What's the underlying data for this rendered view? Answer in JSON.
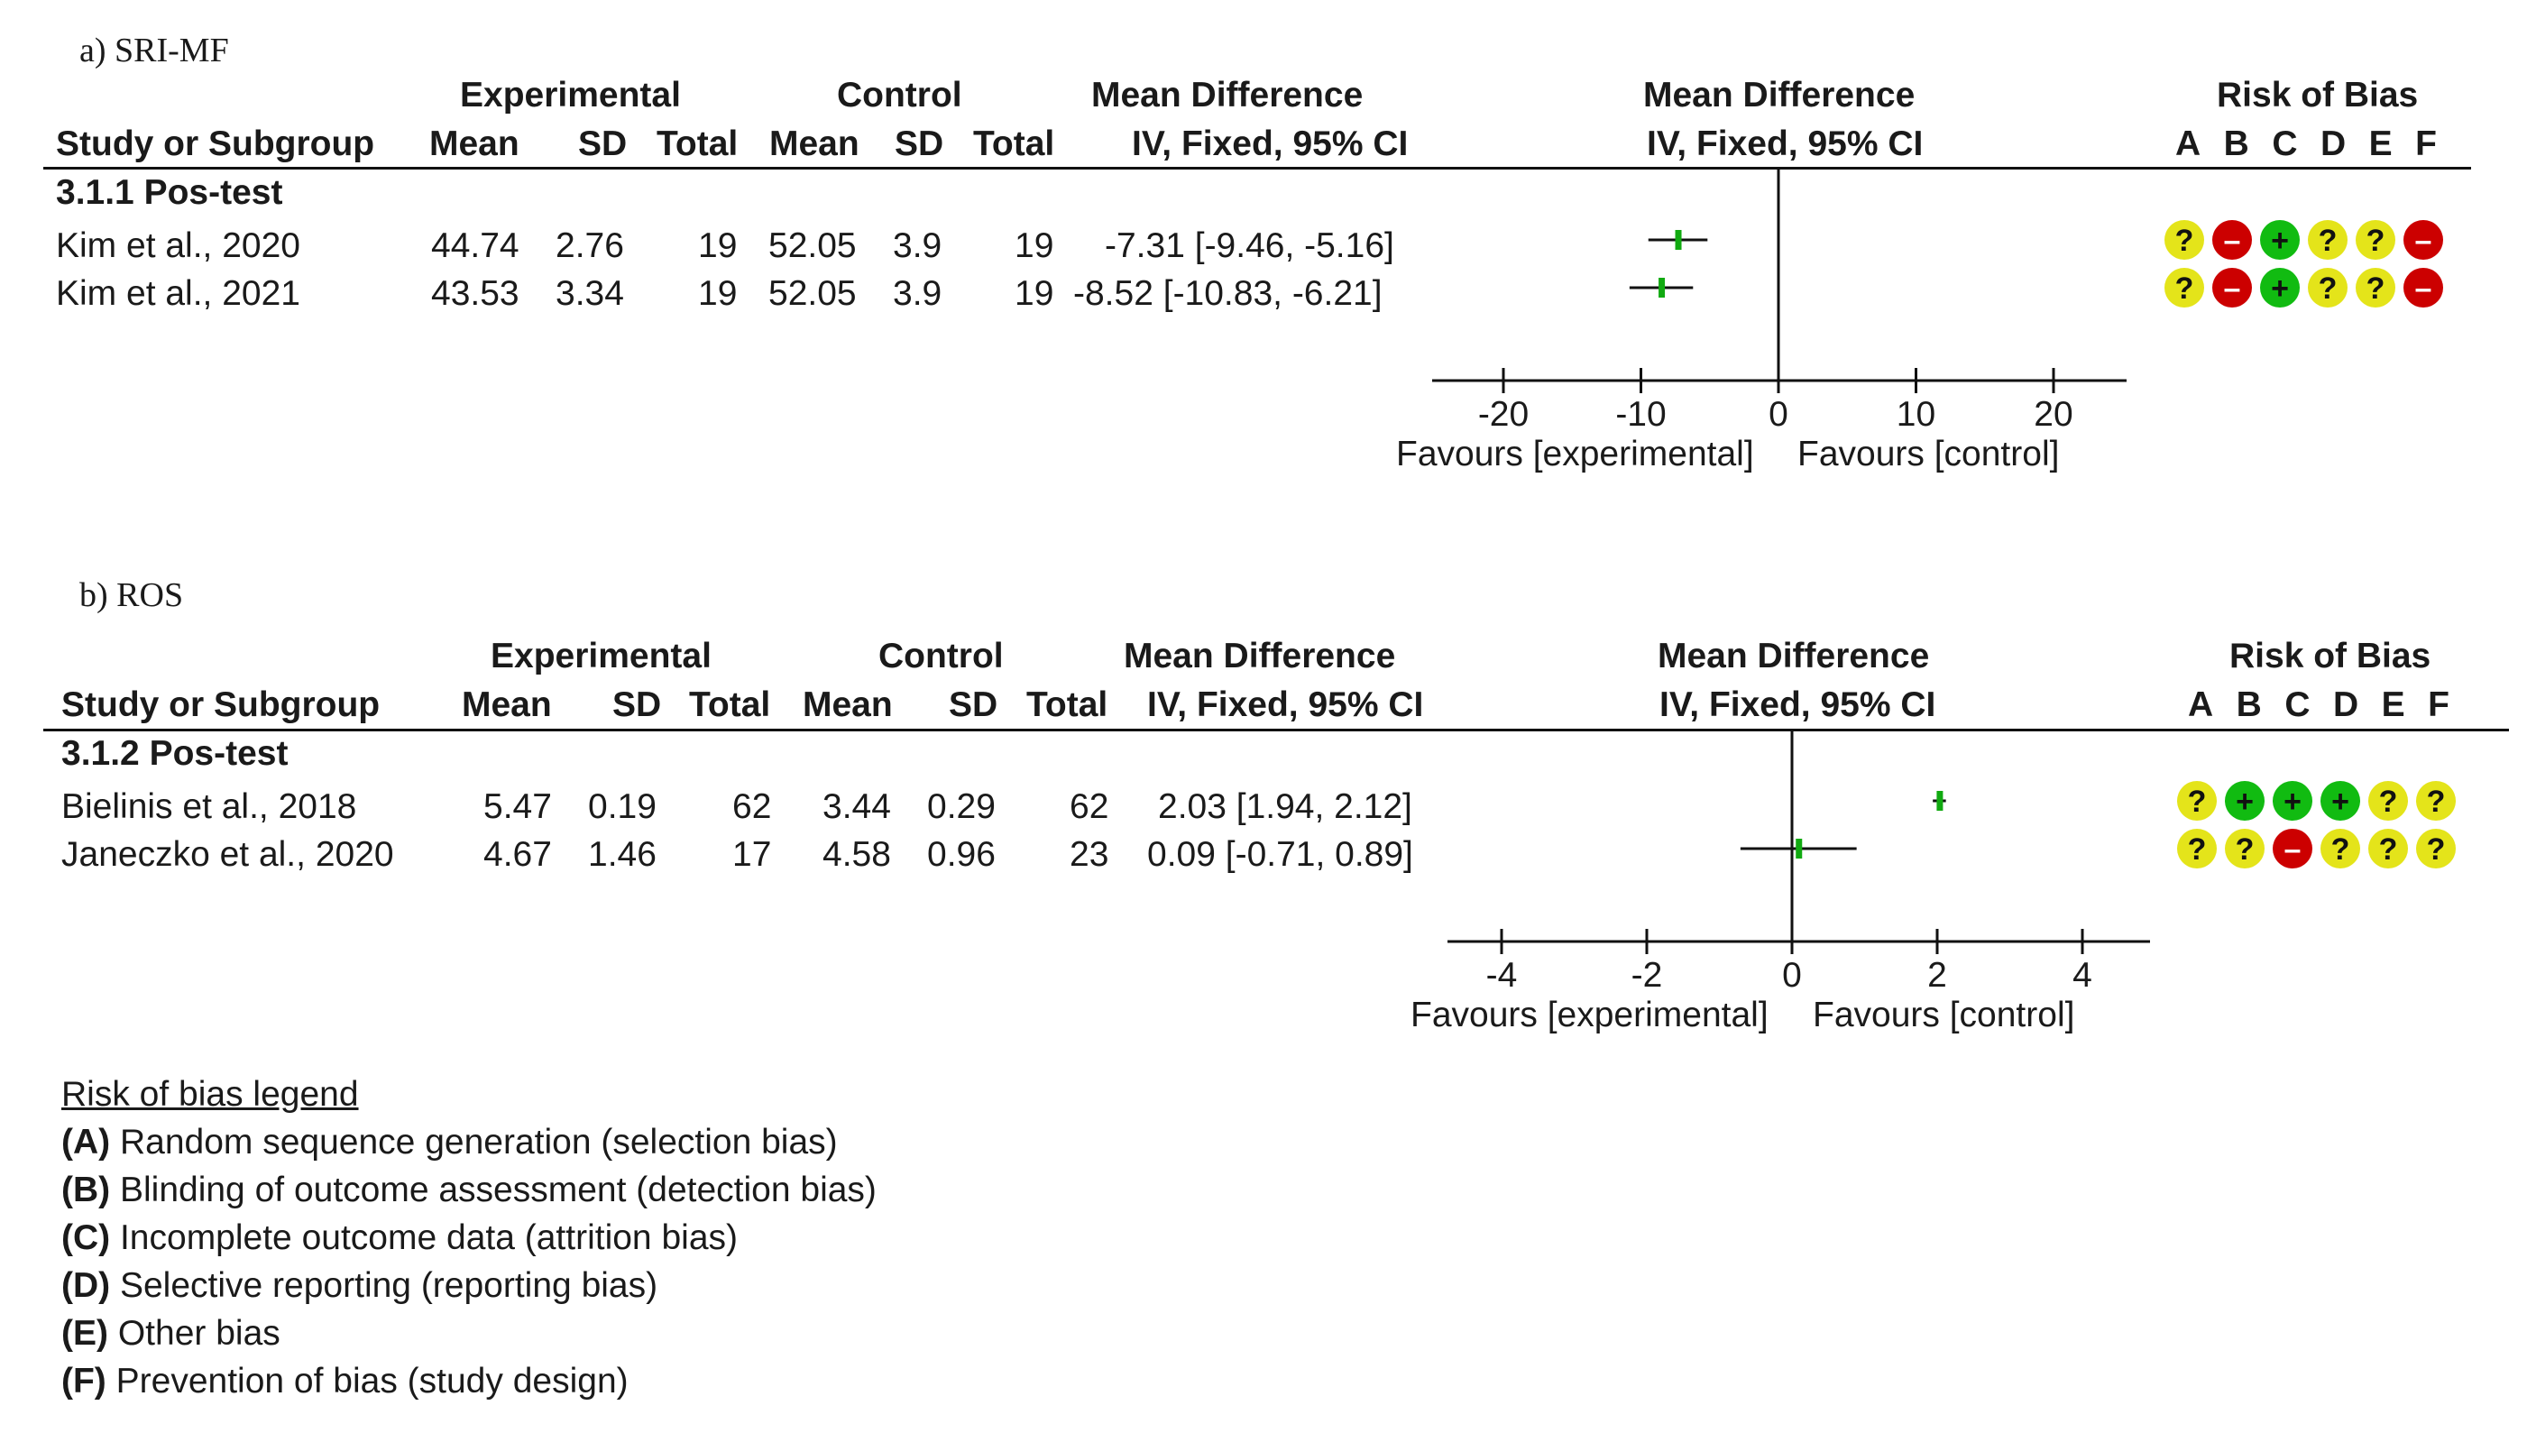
{
  "panels": [
    {
      "label": "a) SRI-MF",
      "headers": {
        "experimental": "Experimental",
        "control": "Control",
        "mean_difference": "Mean Difference",
        "iv_fixed": "IV, Fixed, 95% CI",
        "study_or_subgroup": "Study or Subgroup",
        "mean": "Mean",
        "sd": "SD",
        "total": "Total",
        "risk_of_bias": "Risk of Bias",
        "bias_letters": [
          "A",
          "B",
          "C",
          "D",
          "E",
          "F"
        ]
      },
      "subgroup": "3.1.1 Pos-test",
      "rows": [
        {
          "study": "Kim et al., 2020",
          "exp_mean": "44.74",
          "exp_sd": "2.76",
          "exp_total": "19",
          "ctl_mean": "52.05",
          "ctl_sd": "3.9",
          "ctl_total": "19",
          "ci_text": "-7.31 [-9.46, -5.16]",
          "bias": [
            "?",
            "-",
            "+",
            "?",
            "?",
            "-"
          ]
        },
        {
          "study": "Kim et al., 2021",
          "exp_mean": "43.53",
          "exp_sd": "3.34",
          "exp_total": "19",
          "ctl_mean": "52.05",
          "ctl_sd": "3.9",
          "ctl_total": "19",
          "ci_text": "-8.52 [-10.83, -6.21]",
          "bias": [
            "?",
            "-",
            "+",
            "?",
            "?",
            "-"
          ]
        }
      ],
      "axis_ticks": [
        "-20",
        "-10",
        "0",
        "10",
        "20"
      ],
      "favours_left": "Favours [experimental]",
      "favours_right": "Favours [control]"
    },
    {
      "label": "b) ROS",
      "headers": {
        "experimental": "Experimental",
        "control": "Control",
        "mean_difference": "Mean Difference",
        "iv_fixed": "IV, Fixed, 95% CI",
        "study_or_subgroup": "Study or Subgroup",
        "mean": "Mean",
        "sd": "SD",
        "total": "Total",
        "risk_of_bias": "Risk of Bias",
        "bias_letters": [
          "A",
          "B",
          "C",
          "D",
          "E",
          "F"
        ]
      },
      "subgroup": "3.1.2 Pos-test",
      "rows": [
        {
          "study": "Bielinis et al., 2018",
          "exp_mean": "5.47",
          "exp_sd": "0.19",
          "exp_total": "62",
          "ctl_mean": "3.44",
          "ctl_sd": "0.29",
          "ctl_total": "62",
          "ci_text": "2.03 [1.94, 2.12]",
          "bias": [
            "?",
            "+",
            "+",
            "+",
            "?",
            "?"
          ]
        },
        {
          "study": "Janeczko et al., 2020",
          "exp_mean": "4.67",
          "exp_sd": "1.46",
          "exp_total": "17",
          "ctl_mean": "4.58",
          "ctl_sd": "0.96",
          "ctl_total": "23",
          "ci_text": "0.09 [-0.71, 0.89]",
          "bias": [
            "?",
            "?",
            "-",
            "?",
            "?",
            "?"
          ]
        }
      ],
      "axis_ticks": [
        "-4",
        "-2",
        "0",
        "2",
        "4"
      ],
      "favours_left": "Favours [experimental]",
      "favours_right": "Favours [control]"
    }
  ],
  "legend": {
    "title": "Risk of bias legend",
    "items": [
      {
        "letter": "(A)",
        "text": " Random sequence generation (selection bias)"
      },
      {
        "letter": "(B)",
        "text": " Blinding of outcome assessment (detection bias)"
      },
      {
        "letter": "(C)",
        "text": " Incomplete outcome data (attrition bias)"
      },
      {
        "letter": "(D)",
        "text": " Selective reporting (reporting bias)"
      },
      {
        "letter": "(E)",
        "text": " Other bias"
      },
      {
        "letter": "(F)",
        "text": " Prevention of bias (study design)"
      }
    ]
  },
  "colors": {
    "unclear": "#e4e41a",
    "high": "#cc0000",
    "low": "#11bb11",
    "ci_line": "#111111",
    "point": "#11aa11"
  },
  "chart_data": [
    {
      "type": "forest",
      "title": "a) SRI-MF",
      "xlabel": "Mean Difference IV, Fixed, 95% CI",
      "xlim": [
        -25,
        25
      ],
      "ticks": [
        -20,
        -10,
        0,
        10,
        20
      ],
      "studies": [
        {
          "name": "Kim et al., 2020",
          "md": -7.31,
          "lower": -9.46,
          "upper": -5.16
        },
        {
          "name": "Kim et al., 2021",
          "md": -8.52,
          "lower": -10.83,
          "upper": -6.21
        }
      ]
    },
    {
      "type": "forest",
      "title": "b) ROS",
      "xlabel": "Mean Difference IV, Fixed, 95% CI",
      "xlim": [
        -4.8,
        4.8
      ],
      "ticks": [
        -4,
        -2,
        0,
        2,
        4
      ],
      "studies": [
        {
          "name": "Bielinis et al., 2018",
          "md": 2.03,
          "lower": 1.94,
          "upper": 2.12
        },
        {
          "name": "Janeczko et al., 2020",
          "md": 0.09,
          "lower": -0.71,
          "upper": 0.89
        }
      ]
    }
  ]
}
